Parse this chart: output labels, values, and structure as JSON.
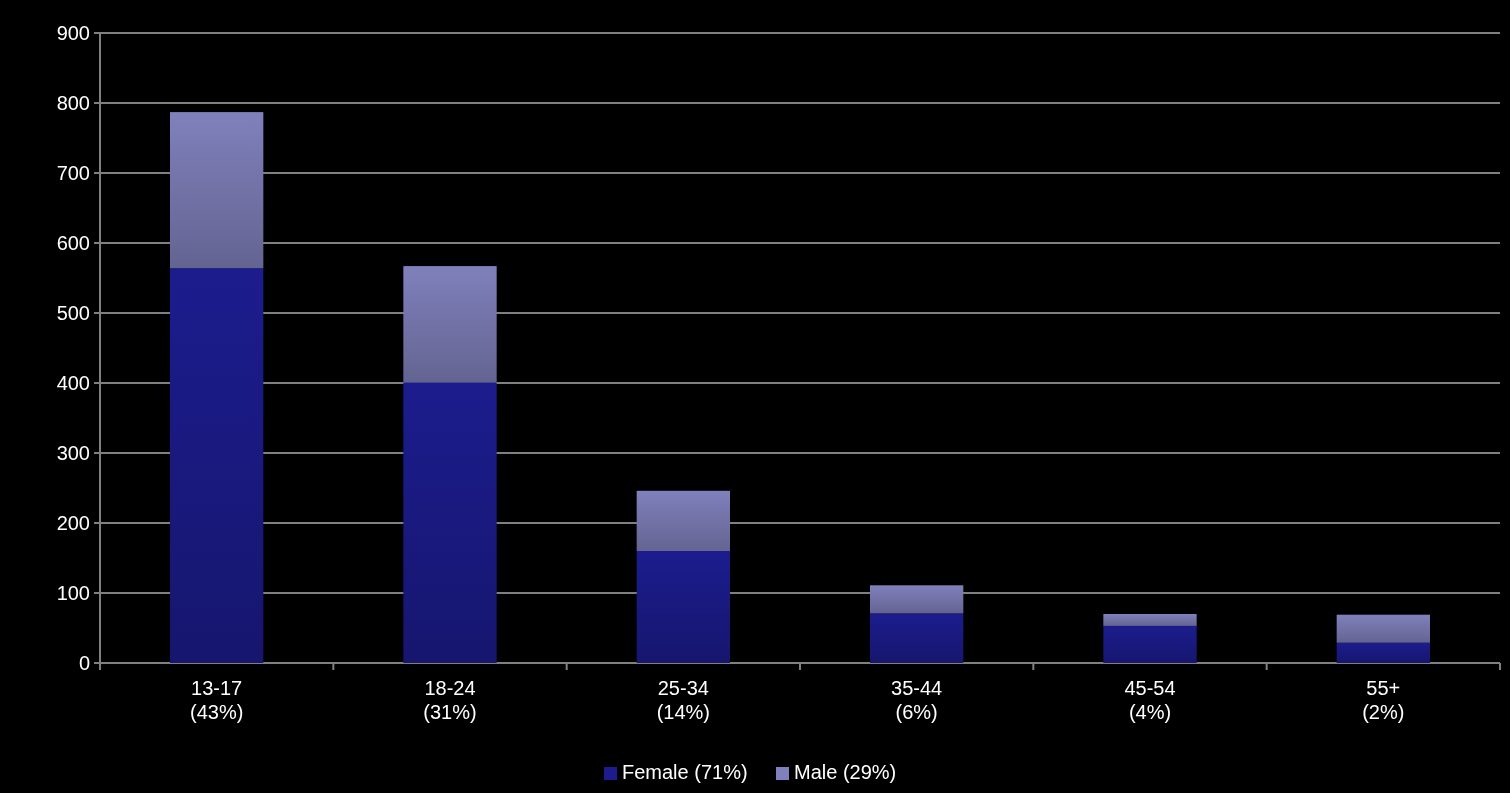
{
  "chart_data": {
    "type": "bar",
    "stacked": true,
    "categories": [
      "13-17\n(43%)",
      "18-24\n(31%)",
      "25-34\n(14%)",
      "35-44\n(6%)",
      "45-54\n(4%)",
      "55+\n(2%)"
    ],
    "series": [
      {
        "name": "Female (71%)",
        "color": "#1c1c8e",
        "values": [
          564,
          401,
          160,
          71,
          53,
          29
        ]
      },
      {
        "name": "Male (29%)",
        "color": "#8080bc",
        "values": [
          223,
          166,
          86,
          40,
          17,
          40
        ]
      }
    ],
    "ylim": [
      0,
      900
    ],
    "yticks": [
      0,
      100,
      200,
      300,
      400,
      500,
      600,
      700,
      800,
      900
    ],
    "grid": "y",
    "legend": "bottom"
  }
}
